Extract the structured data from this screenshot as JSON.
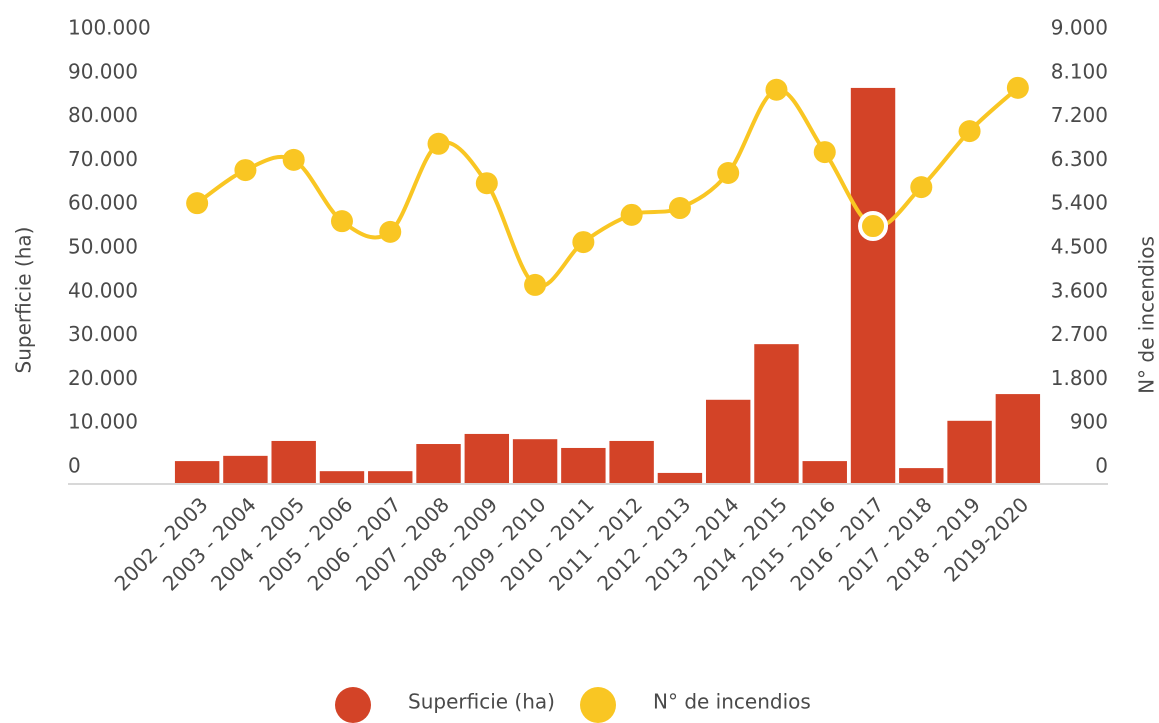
{
  "chart_data": {
    "type": "bar",
    "categories": [
      "2002 - 2003",
      "2003 - 2004",
      "2004 - 2005",
      "2005 - 2006",
      "2006 - 2007",
      "2007 - 2008",
      "2008 - 2009",
      "2009 - 2010",
      "2010 - 2011",
      "2011 - 2012",
      "2012 - 2013",
      "2013 - 2014",
      "2014 - 2015",
      "2015 - 2016",
      "2016 - 2017",
      "2017 - 2018",
      "2018 - 2019",
      "2019-2020"
    ],
    "series": [
      {
        "name": "Superficie (ha)",
        "type": "bar",
        "color": "#d34327",
        "values": [
          5000,
          6200,
          9600,
          2700,
          2700,
          8900,
          11200,
          10000,
          8000,
          9600,
          2300,
          19000,
          31700,
          5000,
          90200,
          3400,
          14200,
          20300
        ]
      },
      {
        "name": "N° de incendios",
        "type": "line",
        "axis": "y2",
        "color": "#f9c623",
        "values": [
          5750,
          6430,
          6640,
          5380,
          5160,
          6970,
          6160,
          4070,
          4950,
          5510,
          5650,
          6370,
          8080,
          6800,
          5280,
          6080,
          7230,
          8120
        ]
      }
    ],
    "ylabel": "Superficie (ha)",
    "y2label": "N° de incendios",
    "ylim": [
      0,
      100000
    ],
    "yticks": [
      0,
      {
        "value": 10000,
        "label": "10.000"
      },
      {
        "value": 20000,
        "label": "20.000"
      },
      {
        "value": 30000,
        "label": "30.000"
      },
      {
        "value": 40000,
        "label": "40.000"
      },
      {
        "value": 50000,
        "label": "50.000"
      },
      {
        "value": 60000,
        "label": "60.000"
      },
      {
        "value": 70000,
        "label": "70.000"
      },
      {
        "value": 80000,
        "label": "80.000"
      },
      {
        "value": 90000,
        "label": "90.000"
      },
      {
        "value": 100000,
        "label": "100.000"
      }
    ],
    "y2lim": [
      0,
      9000
    ],
    "y2ticks": [
      0,
      900,
      {
        "value": 1800,
        "label": "1.800"
      },
      {
        "value": 2700,
        "label": "2.700"
      },
      {
        "value": 3600,
        "label": "3.600"
      },
      {
        "value": 4500,
        "label": "4.500"
      },
      {
        "value": 5400,
        "label": "5.400"
      },
      {
        "value": 6300,
        "label": "6.300"
      },
      {
        "value": 7200,
        "label": "7.200"
      },
      {
        "value": 8100,
        "label": "8.100"
      },
      {
        "value": 9000,
        "label": "9.000"
      }
    ],
    "legend": "bottom"
  }
}
